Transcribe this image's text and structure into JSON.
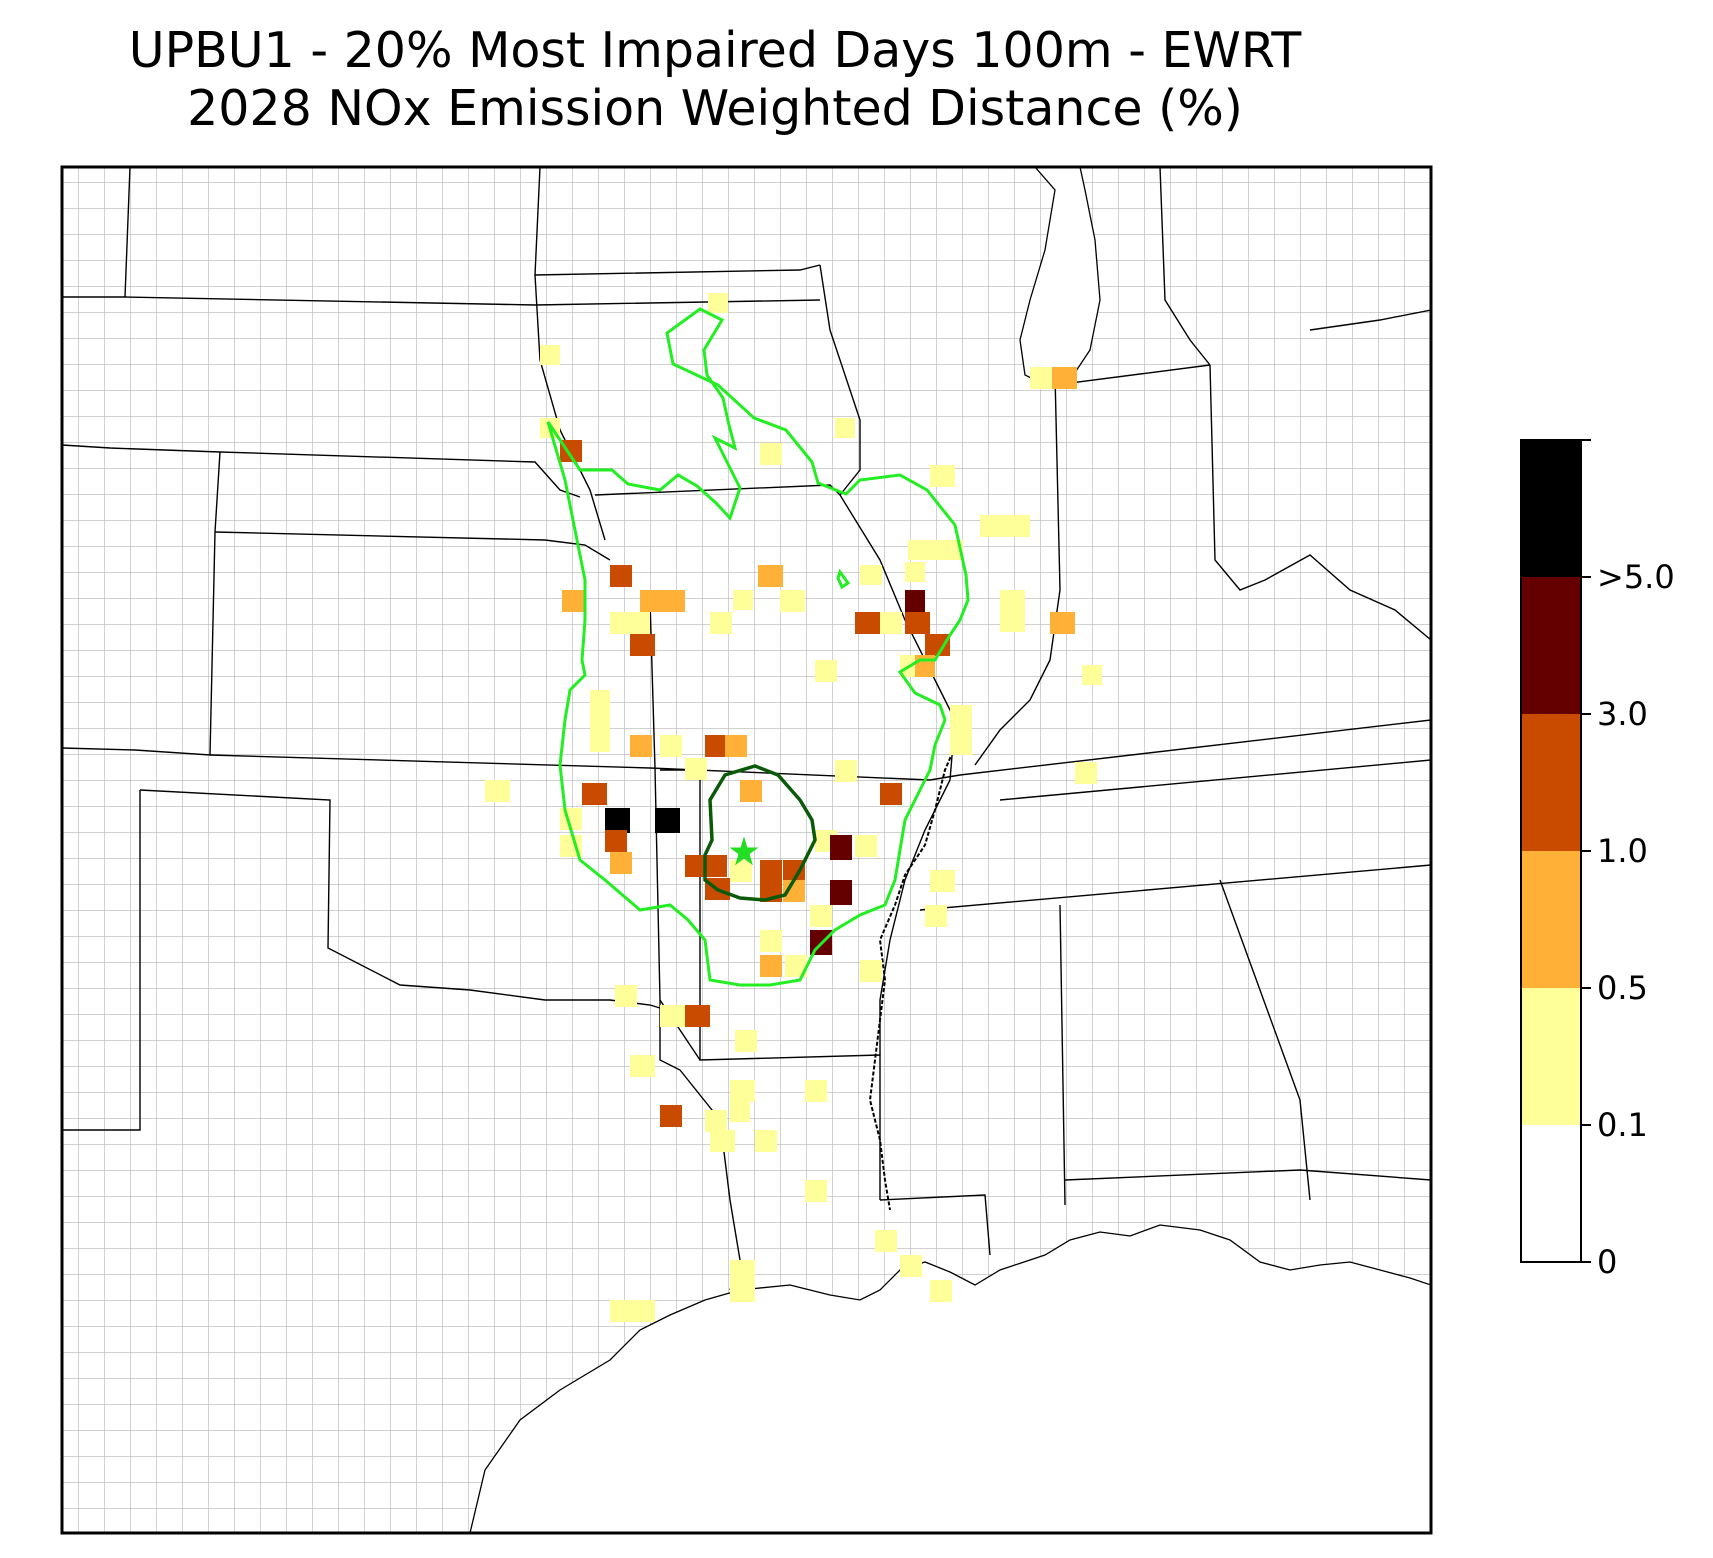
{
  "title": {
    "line1": "UPBU1 - 20% Most Impaired Days 100m - EWRT",
    "line2": "2028 NOx Emission Weighted Distance (%)"
  },
  "colorbar": {
    "tick_labels": [
      "0",
      "0.1",
      "0.5",
      "1.0",
      "3.0",
      ">5.0"
    ],
    "bins": [
      {
        "from": "0",
        "to": "0.1",
        "color": "#ffffff"
      },
      {
        "from": "0.1",
        "to": "0.5",
        "color": "#ffff99"
      },
      {
        "from": "0.5",
        "to": "1.0",
        "color": "#ffb037"
      },
      {
        "from": "1.0",
        "to": "3.0",
        "color": "#c84b00"
      },
      {
        "from": "3.0",
        "to": ">5.0",
        "color": "#650000"
      },
      {
        "from": ">5.0",
        "to": "",
        "color": "#000000"
      }
    ]
  },
  "site_marker": {
    "icon": "star-icon",
    "color": "#22dd22"
  },
  "contour_colors": {
    "outer": "#22ee22",
    "inner": "#0a5a0a"
  },
  "cell_colors": {
    "light": "#ffff99",
    "orange": "#ffb037",
    "rust": "#c84b00",
    "darkred": "#650000",
    "black": "#000000"
  }
}
